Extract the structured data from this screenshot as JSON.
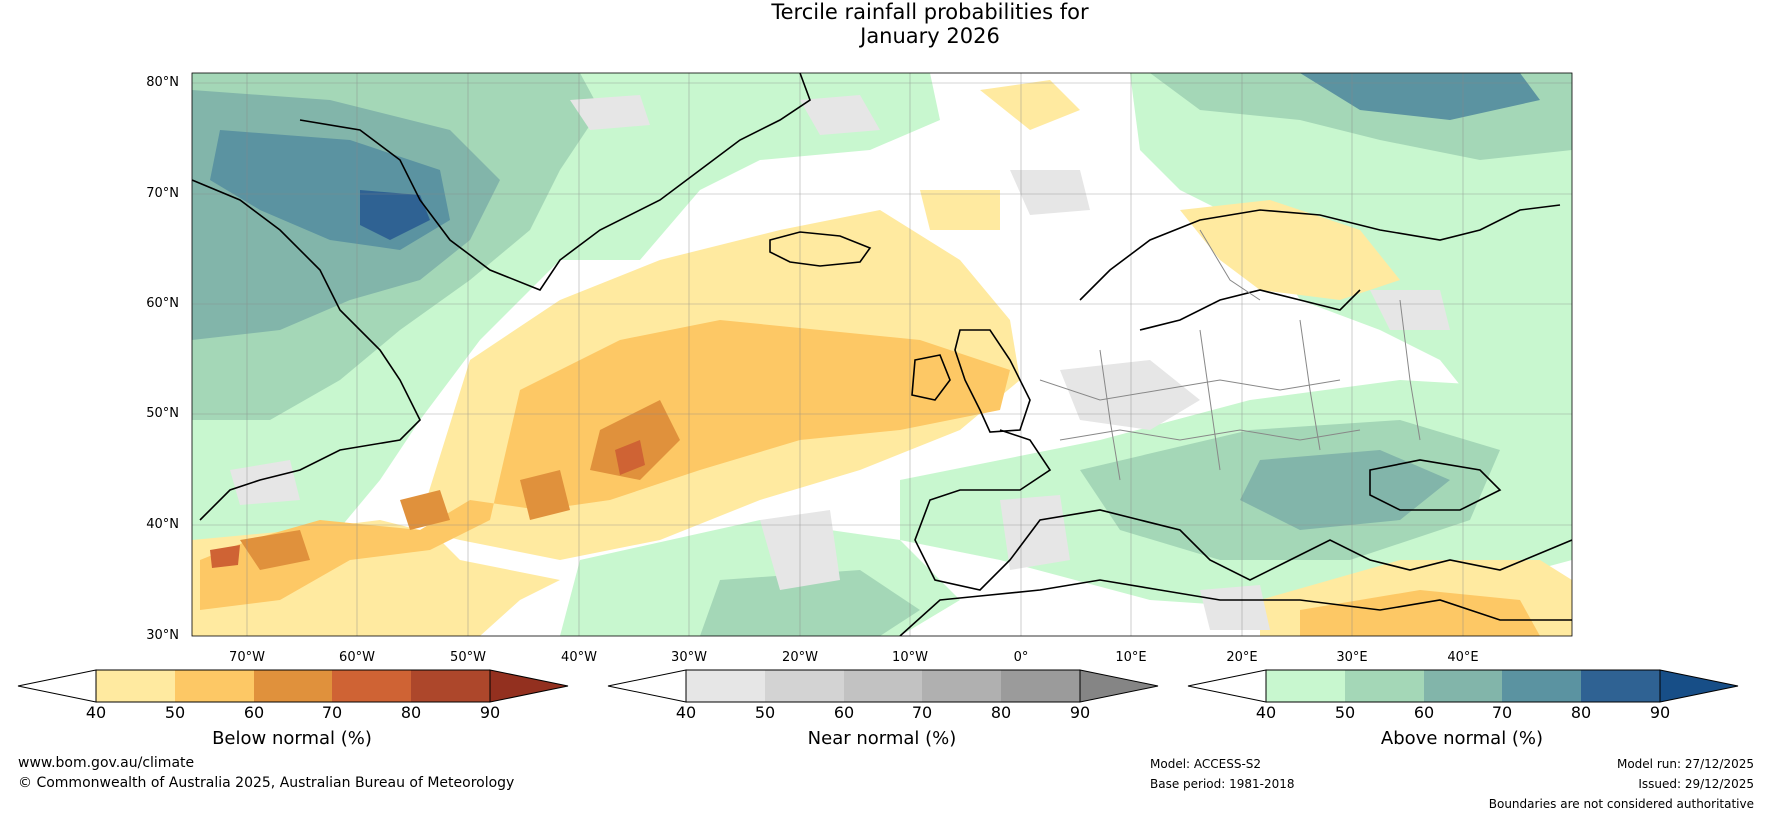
{
  "title_line1": "Tercile rainfall probabilities for",
  "title_line2": "January 2026",
  "lat_labels": [
    "80°N",
    "70°N",
    "60°N",
    "50°N",
    "40°N",
    "30°N"
  ],
  "lon_labels": [
    "70°W",
    "60°W",
    "50°W",
    "40°W",
    "30°W",
    "20°W",
    "10°W",
    "0°",
    "10°E",
    "20°E",
    "30°E",
    "40°E"
  ],
  "colorbars": [
    {
      "title": "Below normal (%)",
      "ticks": [
        "40",
        "50",
        "60",
        "70",
        "80",
        "90"
      ],
      "colors": [
        "#ffeaa0",
        "#fdc865",
        "#e0913c",
        "#cf6334",
        "#ad472b"
      ],
      "extend": "#93301f"
    },
    {
      "title": "Near normal (%)",
      "ticks": [
        "40",
        "50",
        "60",
        "70",
        "80",
        "90"
      ],
      "colors": [
        "#e6e6e6",
        "#d3d3d3",
        "#c2c2c2",
        "#b0b0b0",
        "#9b9b9b"
      ],
      "extend": "#858585"
    },
    {
      "title": "Above normal (%)",
      "ticks": [
        "40",
        "50",
        "60",
        "70",
        "80",
        "90"
      ],
      "colors": [
        "#c8f7cf",
        "#a4d7b7",
        "#82b5aa",
        "#5b93a1",
        "#2f6293"
      ],
      "extend": "#174e87"
    }
  ],
  "footer": {
    "url": "www.bom.gov.au/climate",
    "copyright": "© Commonwealth of Australia 2025, Australian Bureau of Meteorology",
    "model": "Model: ACCESS-S2",
    "base_period": "Base period: 1981-2018",
    "model_run": "Model run: 27/12/2025",
    "issued": "Issued: 29/12/2025",
    "disclaimer": "Boundaries are not considered authoritative"
  }
}
